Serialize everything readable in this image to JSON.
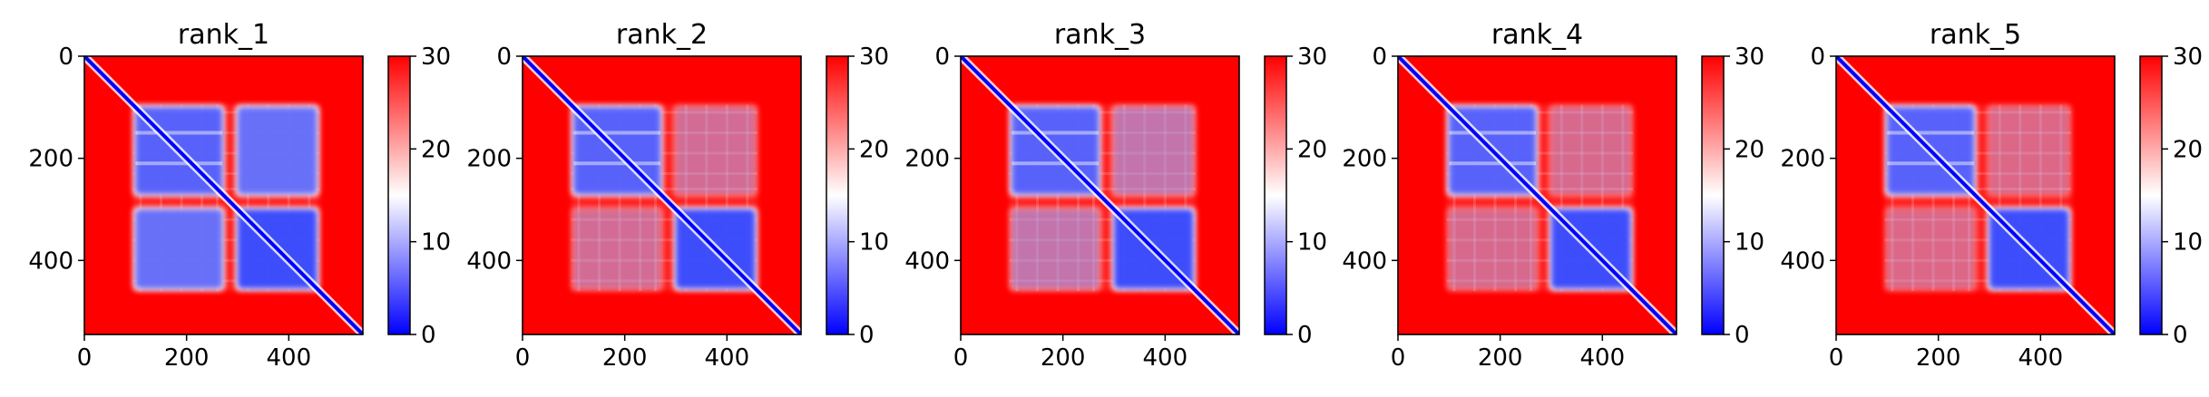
{
  "chart_data": [
    {
      "type": "heatmap",
      "title": "rank_1",
      "x_ticks": [
        0,
        200,
        400
      ],
      "y_ticks": [
        0,
        200,
        400
      ],
      "xlim": [
        0,
        545
      ],
      "ylim": [
        545,
        0
      ],
      "colorbar": {
        "ticks": [
          0,
          10,
          20,
          30
        ],
        "range": [
          0,
          30
        ],
        "colors": [
          "#0000ff",
          "#ffffff",
          "#ff0000"
        ]
      },
      "blue_blocks": [
        [
          100,
          270,
          100,
          270,
          0.78
        ],
        [
          300,
          455,
          300,
          455,
          0.9
        ],
        [
          100,
          270,
          300,
          455,
          0.7
        ],
        [
          300,
          455,
          100,
          270,
          0.7
        ]
      ]
    },
    {
      "type": "heatmap",
      "title": "rank_2",
      "x_ticks": [
        0,
        200,
        400
      ],
      "y_ticks": [
        0,
        200,
        400
      ],
      "xlim": [
        0,
        545
      ],
      "ylim": [
        545,
        0
      ],
      "colorbar": {
        "ticks": [
          0,
          10,
          20,
          30
        ],
        "range": [
          0,
          30
        ],
        "colors": [
          "#0000ff",
          "#ffffff",
          "#ff0000"
        ]
      },
      "blue_blocks": [
        [
          100,
          270,
          100,
          270,
          0.78
        ],
        [
          300,
          455,
          300,
          455,
          0.9
        ],
        [
          100,
          270,
          300,
          455,
          0.2
        ],
        [
          300,
          455,
          100,
          270,
          0.2
        ]
      ]
    },
    {
      "type": "heatmap",
      "title": "rank_3",
      "x_ticks": [
        0,
        200,
        400
      ],
      "y_ticks": [
        0,
        200,
        400
      ],
      "xlim": [
        0,
        545
      ],
      "ylim": [
        545,
        0
      ],
      "colorbar": {
        "ticks": [
          0,
          10,
          20,
          30
        ],
        "range": [
          0,
          30
        ],
        "colors": [
          "#0000ff",
          "#ffffff",
          "#ff0000"
        ]
      },
      "blue_blocks": [
        [
          100,
          270,
          100,
          270,
          0.78
        ],
        [
          300,
          455,
          300,
          455,
          0.9
        ],
        [
          100,
          270,
          300,
          455,
          0.28
        ],
        [
          300,
          455,
          100,
          270,
          0.28
        ]
      ]
    },
    {
      "type": "heatmap",
      "title": "rank_4",
      "x_ticks": [
        0,
        200,
        400
      ],
      "y_ticks": [
        0,
        200,
        400
      ],
      "xlim": [
        0,
        545
      ],
      "ylim": [
        545,
        0
      ],
      "colorbar": {
        "ticks": [
          0,
          10,
          20,
          30
        ],
        "range": [
          0,
          30
        ],
        "colors": [
          "#0000ff",
          "#ffffff",
          "#ff0000"
        ]
      },
      "blue_blocks": [
        [
          100,
          270,
          100,
          270,
          0.78
        ],
        [
          300,
          455,
          300,
          455,
          0.9
        ],
        [
          100,
          270,
          300,
          455,
          0.18
        ],
        [
          300,
          455,
          100,
          270,
          0.18
        ]
      ]
    },
    {
      "type": "heatmap",
      "title": "rank_5",
      "x_ticks": [
        0,
        200,
        400
      ],
      "y_ticks": [
        0,
        200,
        400
      ],
      "xlim": [
        0,
        545
      ],
      "ylim": [
        545,
        0
      ],
      "colorbar": {
        "ticks": [
          0,
          10,
          20,
          30
        ],
        "range": [
          0,
          30
        ],
        "colors": [
          "#0000ff",
          "#ffffff",
          "#ff0000"
        ]
      },
      "blue_blocks": [
        [
          100,
          270,
          100,
          270,
          0.78
        ],
        [
          300,
          455,
          300,
          455,
          0.9
        ],
        [
          100,
          270,
          300,
          455,
          0.16
        ],
        [
          300,
          455,
          100,
          270,
          0.16
        ]
      ]
    }
  ]
}
